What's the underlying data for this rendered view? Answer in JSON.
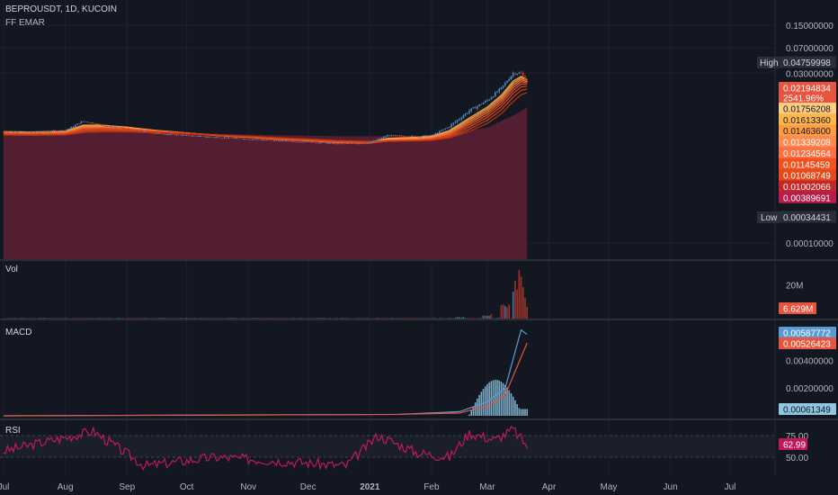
{
  "header": {
    "symbol_line": "BEPROUSDT, 1D, KUCOIN",
    "indicator": "FF EMAR"
  },
  "panes": {
    "volume_title": "Vol",
    "macd_title": "MACD",
    "rsi_title": "RSI"
  },
  "colors": {
    "background": "#131722",
    "grid": "#1e222d",
    "ema_fill": "#5b1f33",
    "up_candle": "#4a8fc4",
    "down_candle": "#c0392b",
    "macd_line": "#5b9bd5",
    "signal_line": "#e8553e",
    "rsi_line": "#c2185b"
  },
  "chart_data": [
    {
      "type": "candlestick",
      "title": "BEPROUSDT, 1D, KUCOIN",
      "scale": "log",
      "y_ticks": [
        "0.15000000",
        "0.07000000",
        "0.03000000",
        "0.00010000"
      ],
      "x_ticks": [
        "Jul",
        "Aug",
        "Sep",
        "Oct",
        "Nov",
        "Dec",
        "2021",
        "Feb",
        "Mar",
        "Apr",
        "May",
        "Jun",
        "Jul"
      ],
      "high_label": "High",
      "high_value": "0.04759998",
      "low_label": "Low",
      "low_value": "0.00034431",
      "price_labels": [
        "0.02194834",
        "2541.96%"
      ],
      "ema_labels": [
        "0.01756208",
        "0.01613360",
        "0.01463600",
        "0.01339208",
        "0.01234564",
        "0.01145459",
        "0.01068749",
        "0.01002066",
        "0.00389691"
      ],
      "price_series": [
        {
          "date": "2020-07-01",
          "close": 0.0042
        },
        {
          "date": "2020-07-15",
          "close": 0.0041
        },
        {
          "date": "2020-08-01",
          "close": 0.0044
        },
        {
          "date": "2020-08-10",
          "close": 0.006
        },
        {
          "date": "2020-08-20",
          "close": 0.0052
        },
        {
          "date": "2020-09-01",
          "close": 0.0046
        },
        {
          "date": "2020-09-15",
          "close": 0.004
        },
        {
          "date": "2020-10-01",
          "close": 0.0037
        },
        {
          "date": "2020-10-15",
          "close": 0.0035
        },
        {
          "date": "2020-11-01",
          "close": 0.0033
        },
        {
          "date": "2020-11-15",
          "close": 0.0031
        },
        {
          "date": "2020-12-01",
          "close": 0.003
        },
        {
          "date": "2020-12-15",
          "close": 0.0028
        },
        {
          "date": "2021-01-01",
          "close": 0.0029
        },
        {
          "date": "2021-01-10",
          "close": 0.0037
        },
        {
          "date": "2021-01-25",
          "close": 0.0036
        },
        {
          "date": "2021-02-01",
          "close": 0.0037
        },
        {
          "date": "2021-02-10",
          "close": 0.005
        },
        {
          "date": "2021-02-20",
          "close": 0.0085
        },
        {
          "date": "2021-03-01",
          "close": 0.012
        },
        {
          "date": "2021-03-08",
          "close": 0.018
        },
        {
          "date": "2021-03-14",
          "close": 0.03
        },
        {
          "date": "2021-03-18",
          "close": 0.03
        },
        {
          "date": "2021-03-21",
          "close": 0.022
        }
      ],
      "ema_fill_series": [
        {
          "date": "2020-07-01",
          "value": 0.004
        },
        {
          "date": "2020-08-15",
          "value": 0.0045
        },
        {
          "date": "2020-09-15",
          "value": 0.0042
        },
        {
          "date": "2020-11-01",
          "value": 0.0038
        },
        {
          "date": "2020-12-15",
          "value": 0.0036
        },
        {
          "date": "2021-02-01",
          "value": 0.0036
        },
        {
          "date": "2021-03-01",
          "value": 0.0048
        },
        {
          "date": "2021-03-15",
          "value": 0.0075
        },
        {
          "date": "2021-03-21",
          "value": 0.0095
        }
      ]
    },
    {
      "type": "bar",
      "title": "Vol",
      "y_ticks": [
        "20M"
      ],
      "last_value_label": "6.629M",
      "series": [
        {
          "date": "2021-02-15",
          "value": 1.0
        },
        {
          "date": "2021-03-01",
          "value": 2.5
        },
        {
          "date": "2021-03-10",
          "value": 8.0
        },
        {
          "date": "2021-03-16",
          "value": 30.0
        },
        {
          "date": "2021-03-18",
          "value": 18.0
        },
        {
          "date": "2021-03-21",
          "value": 6.629
        }
      ]
    },
    {
      "type": "line",
      "title": "MACD",
      "y_ticks": [
        "0.00400000",
        "0.00200000"
      ],
      "value_labels": [
        "0.00587772",
        "0.00526423",
        "0.00061349"
      ],
      "series": [
        {
          "name": "",
          "points": [
            {
              "date": "2021-01-15",
              "value": 0.0001
            },
            {
              "date": "2021-02-15",
              "value": 0.0003
            },
            {
              "date": "2021-03-01",
              "value": 0.001
            },
            {
              "date": "2021-03-10",
              "value": 0.002
            },
            {
              "date": "2021-03-18",
              "value": 0.0062
            },
            {
              "date": "2021-03-21",
              "value": 0.00587772
            }
          ]
        },
        {
          "name": "",
          "points": [
            {
              "date": "2021-01-15",
              "value": 0.0001
            },
            {
              "date": "2021-02-15",
              "value": 0.0002
            },
            {
              "date": "2021-03-01",
              "value": 0.0007
            },
            {
              "date": "2021-03-10",
              "value": 0.0015
            },
            {
              "date": "2021-03-21",
              "value": 0.00526423
            }
          ]
        }
      ]
    },
    {
      "type": "line",
      "title": "RSI",
      "y_ticks": [
        "75.00",
        "50.00"
      ],
      "last_value_label": "62.99",
      "series": [
        {
          "name": "",
          "points": [
            {
              "date": "2020-07-01",
              "value": 57
            },
            {
              "date": "2020-08-15",
              "value": 80
            },
            {
              "date": "2020-09-10",
              "value": 40
            },
            {
              "date": "2020-10-15",
              "value": 50
            },
            {
              "date": "2020-11-15",
              "value": 46
            },
            {
              "date": "2020-12-20",
              "value": 40
            },
            {
              "date": "2021-01-05",
              "value": 75
            },
            {
              "date": "2021-01-25",
              "value": 55
            },
            {
              "date": "2021-02-10",
              "value": 50
            },
            {
              "date": "2021-02-20",
              "value": 78
            },
            {
              "date": "2021-03-05",
              "value": 70
            },
            {
              "date": "2021-03-14",
              "value": 82
            },
            {
              "date": "2021-03-21",
              "value": 62.99
            }
          ]
        }
      ]
    }
  ]
}
